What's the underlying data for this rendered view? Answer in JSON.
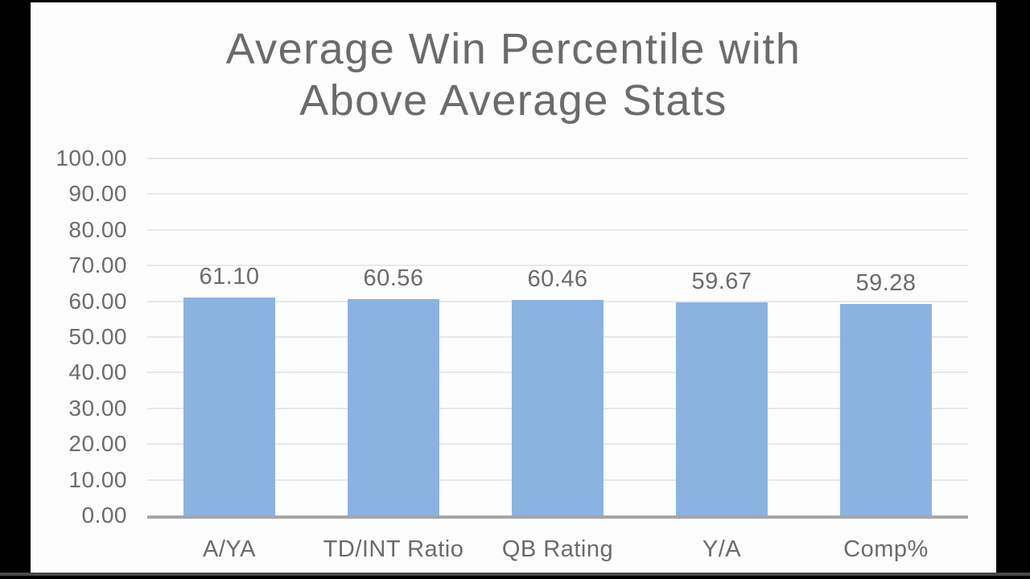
{
  "frame": {
    "background": "#000000",
    "seam_color": "#4a4a4a"
  },
  "slide": {
    "background": "#fdfdfd"
  },
  "chart_data": {
    "type": "bar",
    "title": "Average Win Percentile with Above Average Stats",
    "title_lines": [
      "Average Win Percentile with",
      "Above Average Stats"
    ],
    "categories": [
      "A/YA",
      "TD/INT Ratio",
      "QB Rating",
      "Y/A",
      "Comp%"
    ],
    "values": [
      61.1,
      60.56,
      60.46,
      59.67,
      59.28
    ],
    "value_labels": [
      "61.10",
      "60.56",
      "60.46",
      "59.67",
      "59.28"
    ],
    "xlabel": "",
    "ylabel": "",
    "ylim": [
      0,
      100
    ],
    "yticks": [
      {
        "value": 100,
        "label": "100.00"
      },
      {
        "value": 90,
        "label": "90.00"
      },
      {
        "value": 80,
        "label": "80.00"
      },
      {
        "value": 70,
        "label": "70.00"
      },
      {
        "value": 60,
        "label": "60.00"
      },
      {
        "value": 50,
        "label": "50.00"
      },
      {
        "value": 40,
        "label": "40.00"
      },
      {
        "value": 30,
        "label": "30.00"
      },
      {
        "value": 20,
        "label": "20.00"
      },
      {
        "value": 10,
        "label": "10.00"
      },
      {
        "value": 0,
        "label": "0.00"
      }
    ],
    "grid": true,
    "legend": "none",
    "colors": {
      "bar": "#8bb3e1",
      "text": "#6b6b6b",
      "gridline": "#e8e8ea",
      "axis_line": "#a6a6a6"
    }
  }
}
